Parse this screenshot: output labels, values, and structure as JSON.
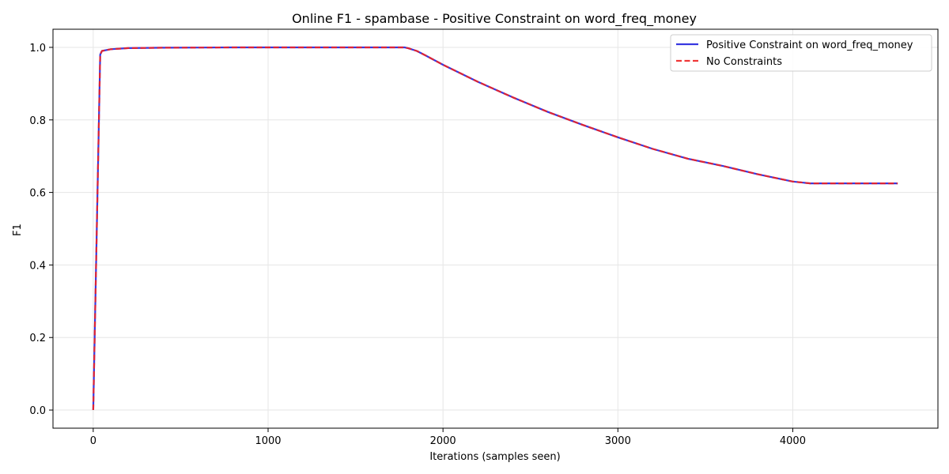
{
  "chart_data": {
    "type": "line",
    "title": "Online F1 - spambase - Positive Constraint on word_freq_money",
    "xlabel": "Iterations (samples seen)",
    "ylabel": "F1",
    "xlim": [
      -230,
      4830
    ],
    "ylim": [
      -0.05,
      1.05
    ],
    "x_ticks": [
      0,
      1000,
      2000,
      3000,
      4000
    ],
    "x_tick_labels": [
      "0",
      "1000",
      "2000",
      "3000",
      "4000"
    ],
    "y_ticks": [
      0.0,
      0.2,
      0.4,
      0.6,
      0.8,
      1.0
    ],
    "y_tick_labels": [
      "0.0",
      "0.2",
      "0.4",
      "0.6",
      "0.8",
      "1.0"
    ],
    "grid": true,
    "legend_position": "top-right",
    "series": [
      {
        "name": "Positive Constraint on word_freq_money",
        "color": "#2222dd",
        "style": "solid",
        "x": [
          0,
          40,
          50,
          100,
          200,
          400,
          800,
          1200,
          1600,
          1780,
          1800,
          1850,
          1900,
          2000,
          2200,
          2400,
          2600,
          2800,
          3000,
          3200,
          3400,
          3600,
          3800,
          4000,
          4100,
          4200,
          4400,
          4600
        ],
        "y": [
          0.0,
          0.98,
          0.99,
          0.995,
          0.998,
          0.999,
          1.0,
          1.0,
          1.0,
          1.0,
          0.998,
          0.99,
          0.978,
          0.952,
          0.905,
          0.862,
          0.822,
          0.786,
          0.752,
          0.72,
          0.693,
          0.673,
          0.65,
          0.63,
          0.625,
          0.625,
          0.625,
          0.625
        ]
      },
      {
        "name": "No Constraints",
        "color": "#ee2222",
        "style": "dashed",
        "x": [
          0,
          40,
          50,
          100,
          200,
          400,
          800,
          1200,
          1600,
          1780,
          1800,
          1850,
          1900,
          2000,
          2200,
          2400,
          2600,
          2800,
          3000,
          3200,
          3400,
          3600,
          3800,
          4000,
          4100,
          4200,
          4400,
          4600
        ],
        "y": [
          0.0,
          0.98,
          0.99,
          0.995,
          0.998,
          0.999,
          1.0,
          1.0,
          1.0,
          1.0,
          0.998,
          0.99,
          0.978,
          0.952,
          0.905,
          0.862,
          0.822,
          0.786,
          0.752,
          0.72,
          0.693,
          0.673,
          0.65,
          0.63,
          0.625,
          0.625,
          0.625,
          0.625
        ]
      }
    ]
  }
}
